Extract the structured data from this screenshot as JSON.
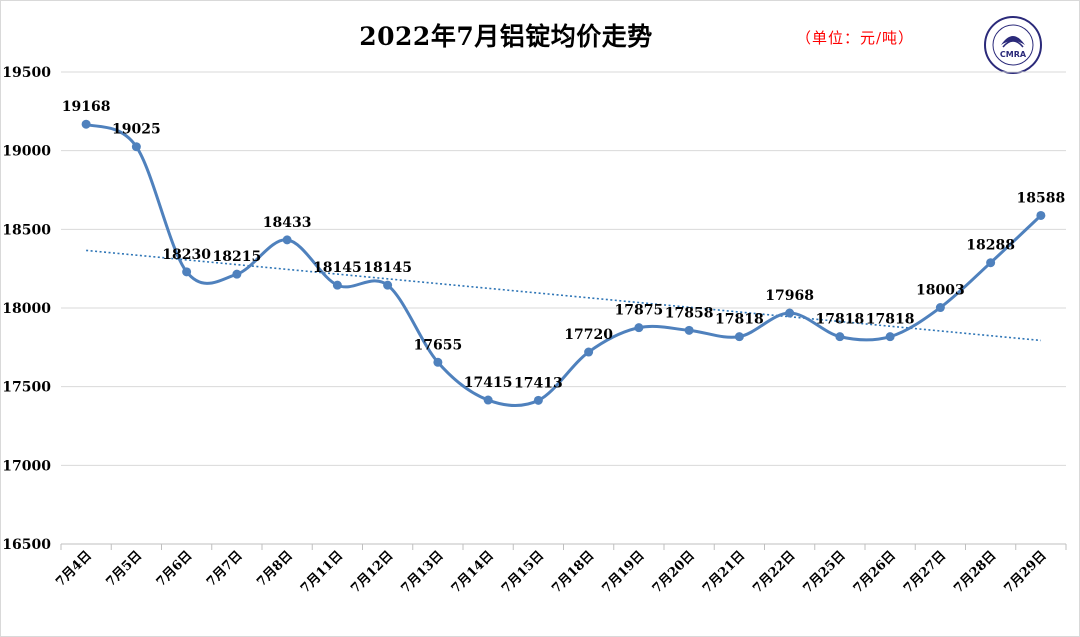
{
  "title": "2022年7月铝锭均价走势",
  "unit_note": "（单位：元/吨）",
  "logo": {
    "text": "CMRA",
    "ring_text": "中国再生资源回收利用协会"
  },
  "colors": {
    "line": "#4f81bd",
    "trend": "#2e75b6",
    "grid": "#d9d9d9",
    "unit": "#ff0000"
  },
  "chart_data": {
    "type": "line",
    "title": "2022年7月铝锭均价走势",
    "xlabel": "",
    "ylabel": "",
    "ylim": [
      16500,
      19500
    ],
    "yticks": [
      16500,
      17000,
      17500,
      18000,
      18500,
      19000,
      19500
    ],
    "grid": true,
    "legend": "none",
    "trendline": "linear",
    "categories": [
      "7月4日",
      "7月5日",
      "7月6日",
      "7月7日",
      "7月8日",
      "7月11日",
      "7月12日",
      "7月13日",
      "7月14日",
      "7月15日",
      "7月18日",
      "7月19日",
      "7月20日",
      "7月21日",
      "7月22日",
      "7月25日",
      "7月26日",
      "7月27日",
      "7月28日",
      "7月29日"
    ],
    "series": [
      {
        "values": [
          19168,
          19025,
          18230,
          18215,
          18433,
          18145,
          18145,
          17655,
          17415,
          17413,
          17720,
          17875,
          17858,
          17818,
          17968,
          17818,
          17818,
          18003,
          18288,
          18588
        ]
      }
    ]
  }
}
